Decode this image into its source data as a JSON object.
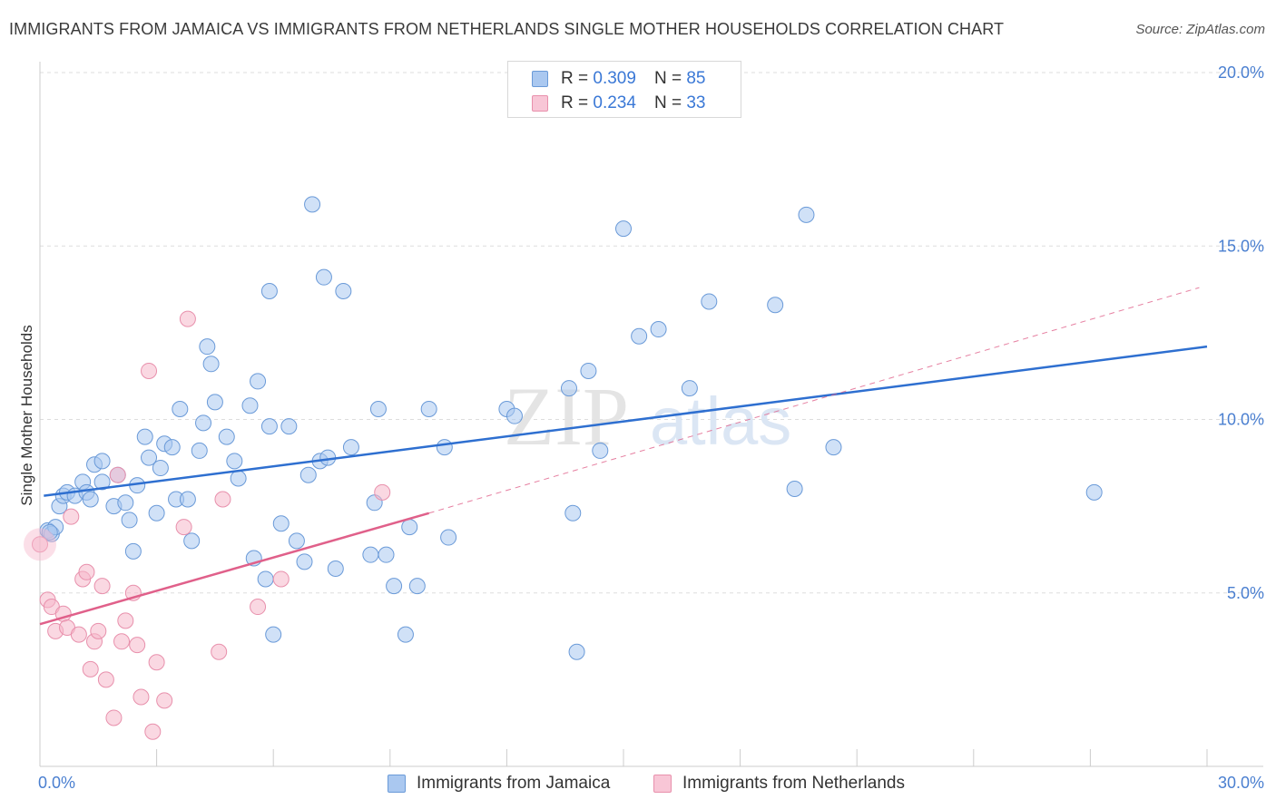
{
  "header": {
    "title": "IMMIGRANTS FROM JAMAICA VS IMMIGRANTS FROM NETHERLANDS SINGLE MOTHER HOUSEHOLDS CORRELATION CHART",
    "source": "Source: ZipAtlas.com"
  },
  "legend": {
    "jamaica": {
      "r_label": "R =",
      "r_value": "0.309",
      "n_label": "N =",
      "n_value": "85"
    },
    "netherlands": {
      "r_label": "R =",
      "r_value": "0.234",
      "n_label": "N =",
      "n_value": "33"
    }
  },
  "watermark": {
    "zip": "ZIP",
    "atlas": "atlas"
  },
  "colors": {
    "jamaica_fill": "#aac8f0",
    "jamaica_stroke": "#6a9ad8",
    "jamaica_line": "#2e6fd0",
    "netherlands_fill": "#f6b8cb",
    "netherlands_stroke": "#e890ac",
    "netherlands_line": "#e0608a",
    "tick_text": "#4a7fd0",
    "grid": "#dddddd"
  },
  "chart_data": {
    "type": "scatter",
    "title": "IMMIGRANTS FROM JAMAICA VS IMMIGRANTS FROM NETHERLANDS SINGLE MOTHER HOUSEHOLDS CORRELATION CHART",
    "xlabel": "",
    "ylabel": "Single Mother Households",
    "xlim": [
      0,
      30
    ],
    "ylim": [
      0,
      20
    ],
    "x_tick_labels": [
      {
        "value": 0,
        "label": "0.0%"
      },
      {
        "value": 30,
        "label": "30.0%"
      }
    ],
    "y_tick_labels": [
      {
        "value": 5,
        "label": "5.0%"
      },
      {
        "value": 10,
        "label": "10.0%"
      },
      {
        "value": 15,
        "label": "15.0%"
      },
      {
        "value": 20,
        "label": "20.0%"
      }
    ],
    "x_minor_ticks": [
      0,
      3,
      6,
      9,
      12,
      15,
      18,
      21,
      24,
      27,
      30
    ],
    "grid": true,
    "legend_position": "top-center",
    "series": [
      {
        "name": "Immigrants from Jamaica",
        "key": "jamaica",
        "r": 0.309,
        "n": 85,
        "trend": {
          "x0": 0.1,
          "y0": 7.8,
          "x1": 30,
          "y1": 12.1,
          "style": "solid"
        },
        "points": [
          [
            0.2,
            6.8
          ],
          [
            0.3,
            6.7
          ],
          [
            0.4,
            6.9
          ],
          [
            0.5,
            7.5
          ],
          [
            0.6,
            7.8
          ],
          [
            0.7,
            7.9
          ],
          [
            0.9,
            7.8
          ],
          [
            1.1,
            8.2
          ],
          [
            1.2,
            7.9
          ],
          [
            1.3,
            7.7
          ],
          [
            1.4,
            8.7
          ],
          [
            1.6,
            8.8
          ],
          [
            1.6,
            8.2
          ],
          [
            1.9,
            7.5
          ],
          [
            2.0,
            8.4
          ],
          [
            2.2,
            7.6
          ],
          [
            2.3,
            7.1
          ],
          [
            2.4,
            6.2
          ],
          [
            2.5,
            8.1
          ],
          [
            2.7,
            9.5
          ],
          [
            2.8,
            8.9
          ],
          [
            3.0,
            7.3
          ],
          [
            3.1,
            8.6
          ],
          [
            3.2,
            9.3
          ],
          [
            3.4,
            9.2
          ],
          [
            3.5,
            7.7
          ],
          [
            3.6,
            10.3
          ],
          [
            3.8,
            7.7
          ],
          [
            3.9,
            6.5
          ],
          [
            4.1,
            9.1
          ],
          [
            4.2,
            9.9
          ],
          [
            4.3,
            12.1
          ],
          [
            4.4,
            11.6
          ],
          [
            4.5,
            10.5
          ],
          [
            4.8,
            9.5
          ],
          [
            5.0,
            8.8
          ],
          [
            5.1,
            8.3
          ],
          [
            5.4,
            10.4
          ],
          [
            5.5,
            6.0
          ],
          [
            5.6,
            11.1
          ],
          [
            5.8,
            5.4
          ],
          [
            5.9,
            13.7
          ],
          [
            5.9,
            9.8
          ],
          [
            6.0,
            3.8
          ],
          [
            6.2,
            7.0
          ],
          [
            6.4,
            9.8
          ],
          [
            6.6,
            6.5
          ],
          [
            6.8,
            5.9
          ],
          [
            6.9,
            8.4
          ],
          [
            7.0,
            16.2
          ],
          [
            7.2,
            8.8
          ],
          [
            7.3,
            14.1
          ],
          [
            7.4,
            8.9
          ],
          [
            7.6,
            5.7
          ],
          [
            7.8,
            13.7
          ],
          [
            8.0,
            9.2
          ],
          [
            8.5,
            6.1
          ],
          [
            8.6,
            7.6
          ],
          [
            8.7,
            10.3
          ],
          [
            8.9,
            6.1
          ],
          [
            9.1,
            5.2
          ],
          [
            9.4,
            3.8
          ],
          [
            9.5,
            6.9
          ],
          [
            9.7,
            5.2
          ],
          [
            10.0,
            10.3
          ],
          [
            10.4,
            9.2
          ],
          [
            10.5,
            6.6
          ],
          [
            12.0,
            10.3
          ],
          [
            12.2,
            10.1
          ],
          [
            13.6,
            10.9
          ],
          [
            13.7,
            7.3
          ],
          [
            13.8,
            3.3
          ],
          [
            14.1,
            11.4
          ],
          [
            14.4,
            9.1
          ],
          [
            15.0,
            15.5
          ],
          [
            15.4,
            12.4
          ],
          [
            15.9,
            12.6
          ],
          [
            16.7,
            10.9
          ],
          [
            17.2,
            13.4
          ],
          [
            18.9,
            13.3
          ],
          [
            19.4,
            8.0
          ],
          [
            19.7,
            15.9
          ],
          [
            20.4,
            9.2
          ],
          [
            27.1,
            7.9
          ],
          [
            0.25,
            6.75
          ]
        ]
      },
      {
        "name": "Immigrants from Netherlands",
        "key": "netherlands",
        "r": 0.234,
        "n": 33,
        "trend": {
          "x0": 0,
          "y0": 4.1,
          "x1": 10,
          "y1": 7.3,
          "style": "solid"
        },
        "trend_extension": {
          "x0": 10,
          "y0": 7.3,
          "x1": 29.8,
          "y1": 13.8,
          "style": "dashed"
        },
        "points": [
          [
            0.0,
            6.4
          ],
          [
            0.2,
            4.8
          ],
          [
            0.3,
            4.6
          ],
          [
            0.4,
            3.9
          ],
          [
            0.6,
            4.4
          ],
          [
            0.7,
            4.0
          ],
          [
            0.8,
            7.2
          ],
          [
            1.0,
            3.8
          ],
          [
            1.1,
            5.4
          ],
          [
            1.2,
            5.6
          ],
          [
            1.3,
            2.8
          ],
          [
            1.4,
            3.6
          ],
          [
            1.5,
            3.9
          ],
          [
            1.6,
            5.2
          ],
          [
            1.7,
            2.5
          ],
          [
            1.9,
            1.4
          ],
          [
            2.0,
            8.4
          ],
          [
            2.1,
            3.6
          ],
          [
            2.2,
            4.2
          ],
          [
            2.4,
            5.0
          ],
          [
            2.5,
            3.5
          ],
          [
            2.6,
            2.0
          ],
          [
            2.8,
            11.4
          ],
          [
            2.9,
            1.0
          ],
          [
            3.0,
            3.0
          ],
          [
            3.2,
            1.9
          ],
          [
            3.7,
            6.9
          ],
          [
            3.8,
            12.9
          ],
          [
            4.6,
            3.3
          ],
          [
            4.7,
            7.7
          ],
          [
            5.6,
            4.6
          ],
          [
            6.2,
            5.4
          ],
          [
            8.8,
            7.9
          ]
        ]
      }
    ]
  },
  "bottom_legend": {
    "jamaica_label": "Immigrants from Jamaica",
    "netherlands_label": "Immigrants from Netherlands"
  }
}
